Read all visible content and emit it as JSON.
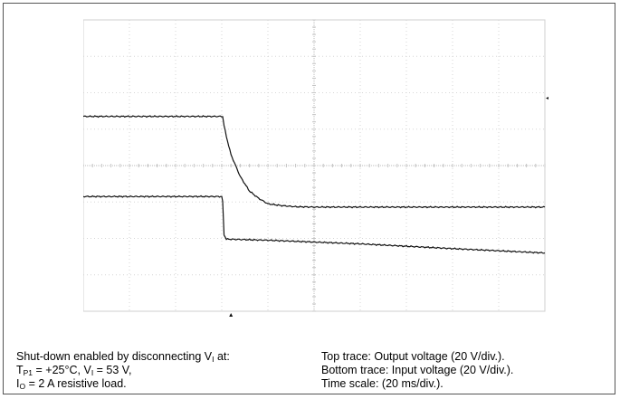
{
  "chart_data": {
    "type": "line",
    "grid": true,
    "divisions": {
      "x": 10,
      "y": 8
    },
    "x_unit_label": "Time scale: (20 ms/div.).",
    "series": [
      {
        "name": "Top trace: Output voltage (20 V/div.).",
        "x_div": [
          0,
          3.02,
          3.05,
          3.1,
          3.2,
          3.4,
          3.6,
          3.8,
          4.0,
          4.3,
          4.6,
          5.0,
          6.0,
          8.0,
          10.0
        ],
        "y_div": [
          5.35,
          5.35,
          5.1,
          4.8,
          4.3,
          3.7,
          3.3,
          3.1,
          2.95,
          2.9,
          2.87,
          2.86,
          2.86,
          2.86,
          2.86
        ]
      },
      {
        "name": "Bottom trace: Input voltage (20 V/div.).",
        "x_div": [
          0,
          3.0,
          3.02,
          3.05,
          3.1,
          4.0,
          6.0,
          8.0,
          10.0
        ],
        "y_div": [
          3.15,
          3.15,
          3.0,
          2.1,
          1.98,
          1.95,
          1.85,
          1.72,
          1.6
        ]
      }
    ],
    "markers": {
      "left": [
        "r2",
        "r1"
      ],
      "bottom_arrow_x_div": 3.2,
      "right_arrow_y_div": 5.85
    }
  },
  "caption": {
    "left_line1_pre": "Shut-down enabled by disconnecting V",
    "left_line1_sub": "I",
    "left_line1_post": " at:",
    "left_line2_a": "T",
    "left_line2_a_sub": "P1",
    "left_line2_b": " = +25°C, V",
    "left_line2_b_sub": "I",
    "left_line2_c": " = 53 V,",
    "left_line3_a": "I",
    "left_line3_a_sub": "O",
    "left_line3_b": " = 2 A resistive load.",
    "right_line1": "Top trace: Output voltage (20 V/div.).",
    "right_line2": "Bottom trace: Input voltage (20 V/div.).",
    "right_line3": "Time scale: (20 ms/div.)."
  }
}
